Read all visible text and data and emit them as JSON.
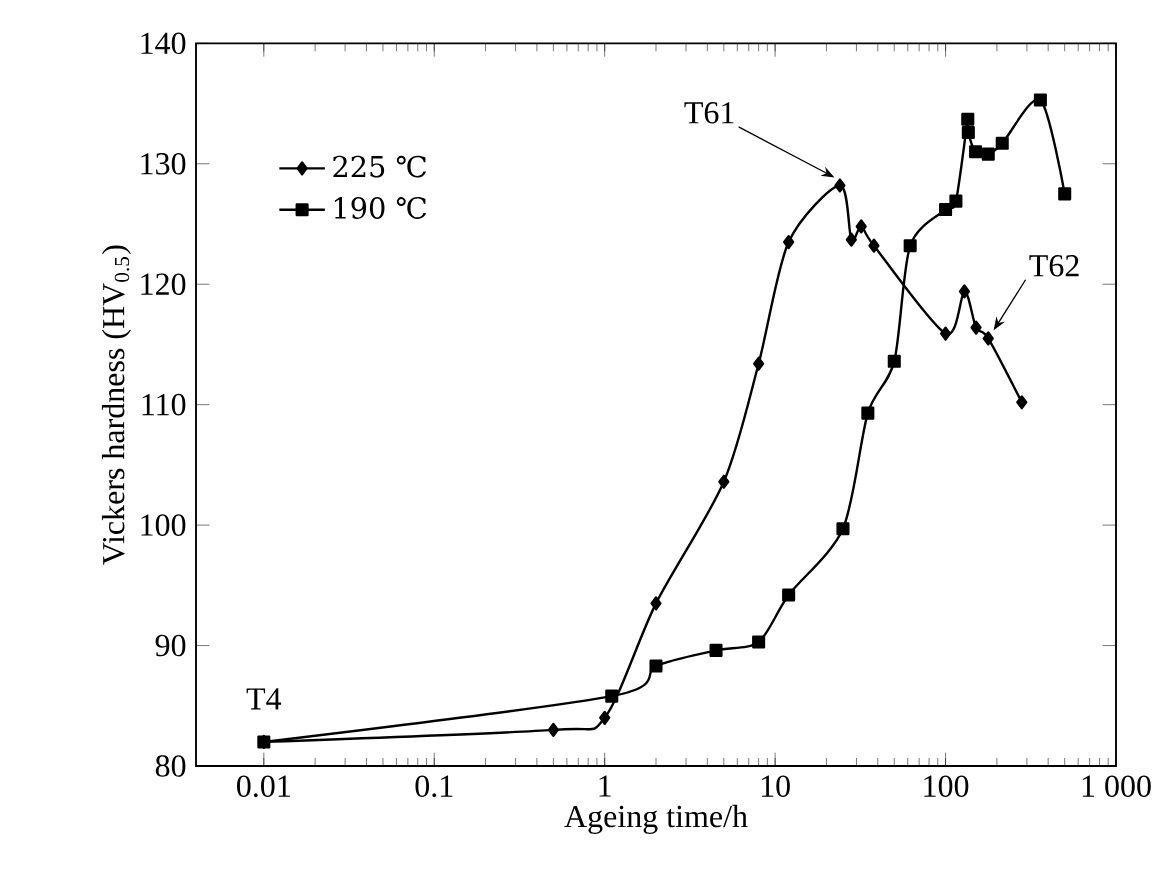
{
  "chart_data": {
    "type": "line",
    "xlabel": "Ageing time/h",
    "ylabel": "Vickers hardness (HV$_{0.5}$)",
    "log": "x",
    "xlim": [
      0.004,
      1000
    ],
    "ylim": [
      80,
      140
    ],
    "xticks": [
      0.01,
      0.1,
      1,
      10,
      100,
      {
        "value": 1000,
        "label": "1 000"
      }
    ],
    "yticks": [
      80,
      90,
      100,
      110,
      120,
      130,
      140
    ],
    "legend": "top left",
    "grid": false,
    "series": [
      {
        "name": "225 ℃",
        "color": "#000000",
        "marker": "diamond",
        "x": [
          0.01,
          0.5,
          1,
          2,
          5,
          8,
          12,
          24,
          28,
          32,
          38,
          100,
          129,
          151,
          178,
          280
        ],
        "values": [
          82,
          83,
          84,
          93.5,
          103.6,
          113.4,
          123.5,
          128.2,
          123.7,
          124.8,
          123.2,
          115.9,
          119.4,
          116.4,
          115.5,
          110.2
        ]
      },
      {
        "name": "190 ℃",
        "color": "#000000",
        "marker": "square",
        "x": [
          0.01,
          1.1,
          2,
          4.5,
          8,
          12,
          25,
          35,
          50,
          62,
          100,
          115,
          135,
          136,
          150,
          178,
          215,
          360,
          500
        ],
        "values": [
          82,
          85.8,
          88.3,
          89.6,
          90.3,
          94.2,
          99.7,
          109.3,
          113.6,
          123.2,
          126.2,
          126.9,
          133.7,
          132.6,
          131,
          130.8,
          131.7,
          135.3,
          127.5
        ]
      }
    ],
    "annotations": [
      {
        "text": "T4",
        "x": 0.01,
        "y": 82
      },
      {
        "text": "T61",
        "x": 24,
        "y": 128.2
      },
      {
        "text": "T62",
        "x": 178,
        "y": 115.5
      }
    ]
  }
}
